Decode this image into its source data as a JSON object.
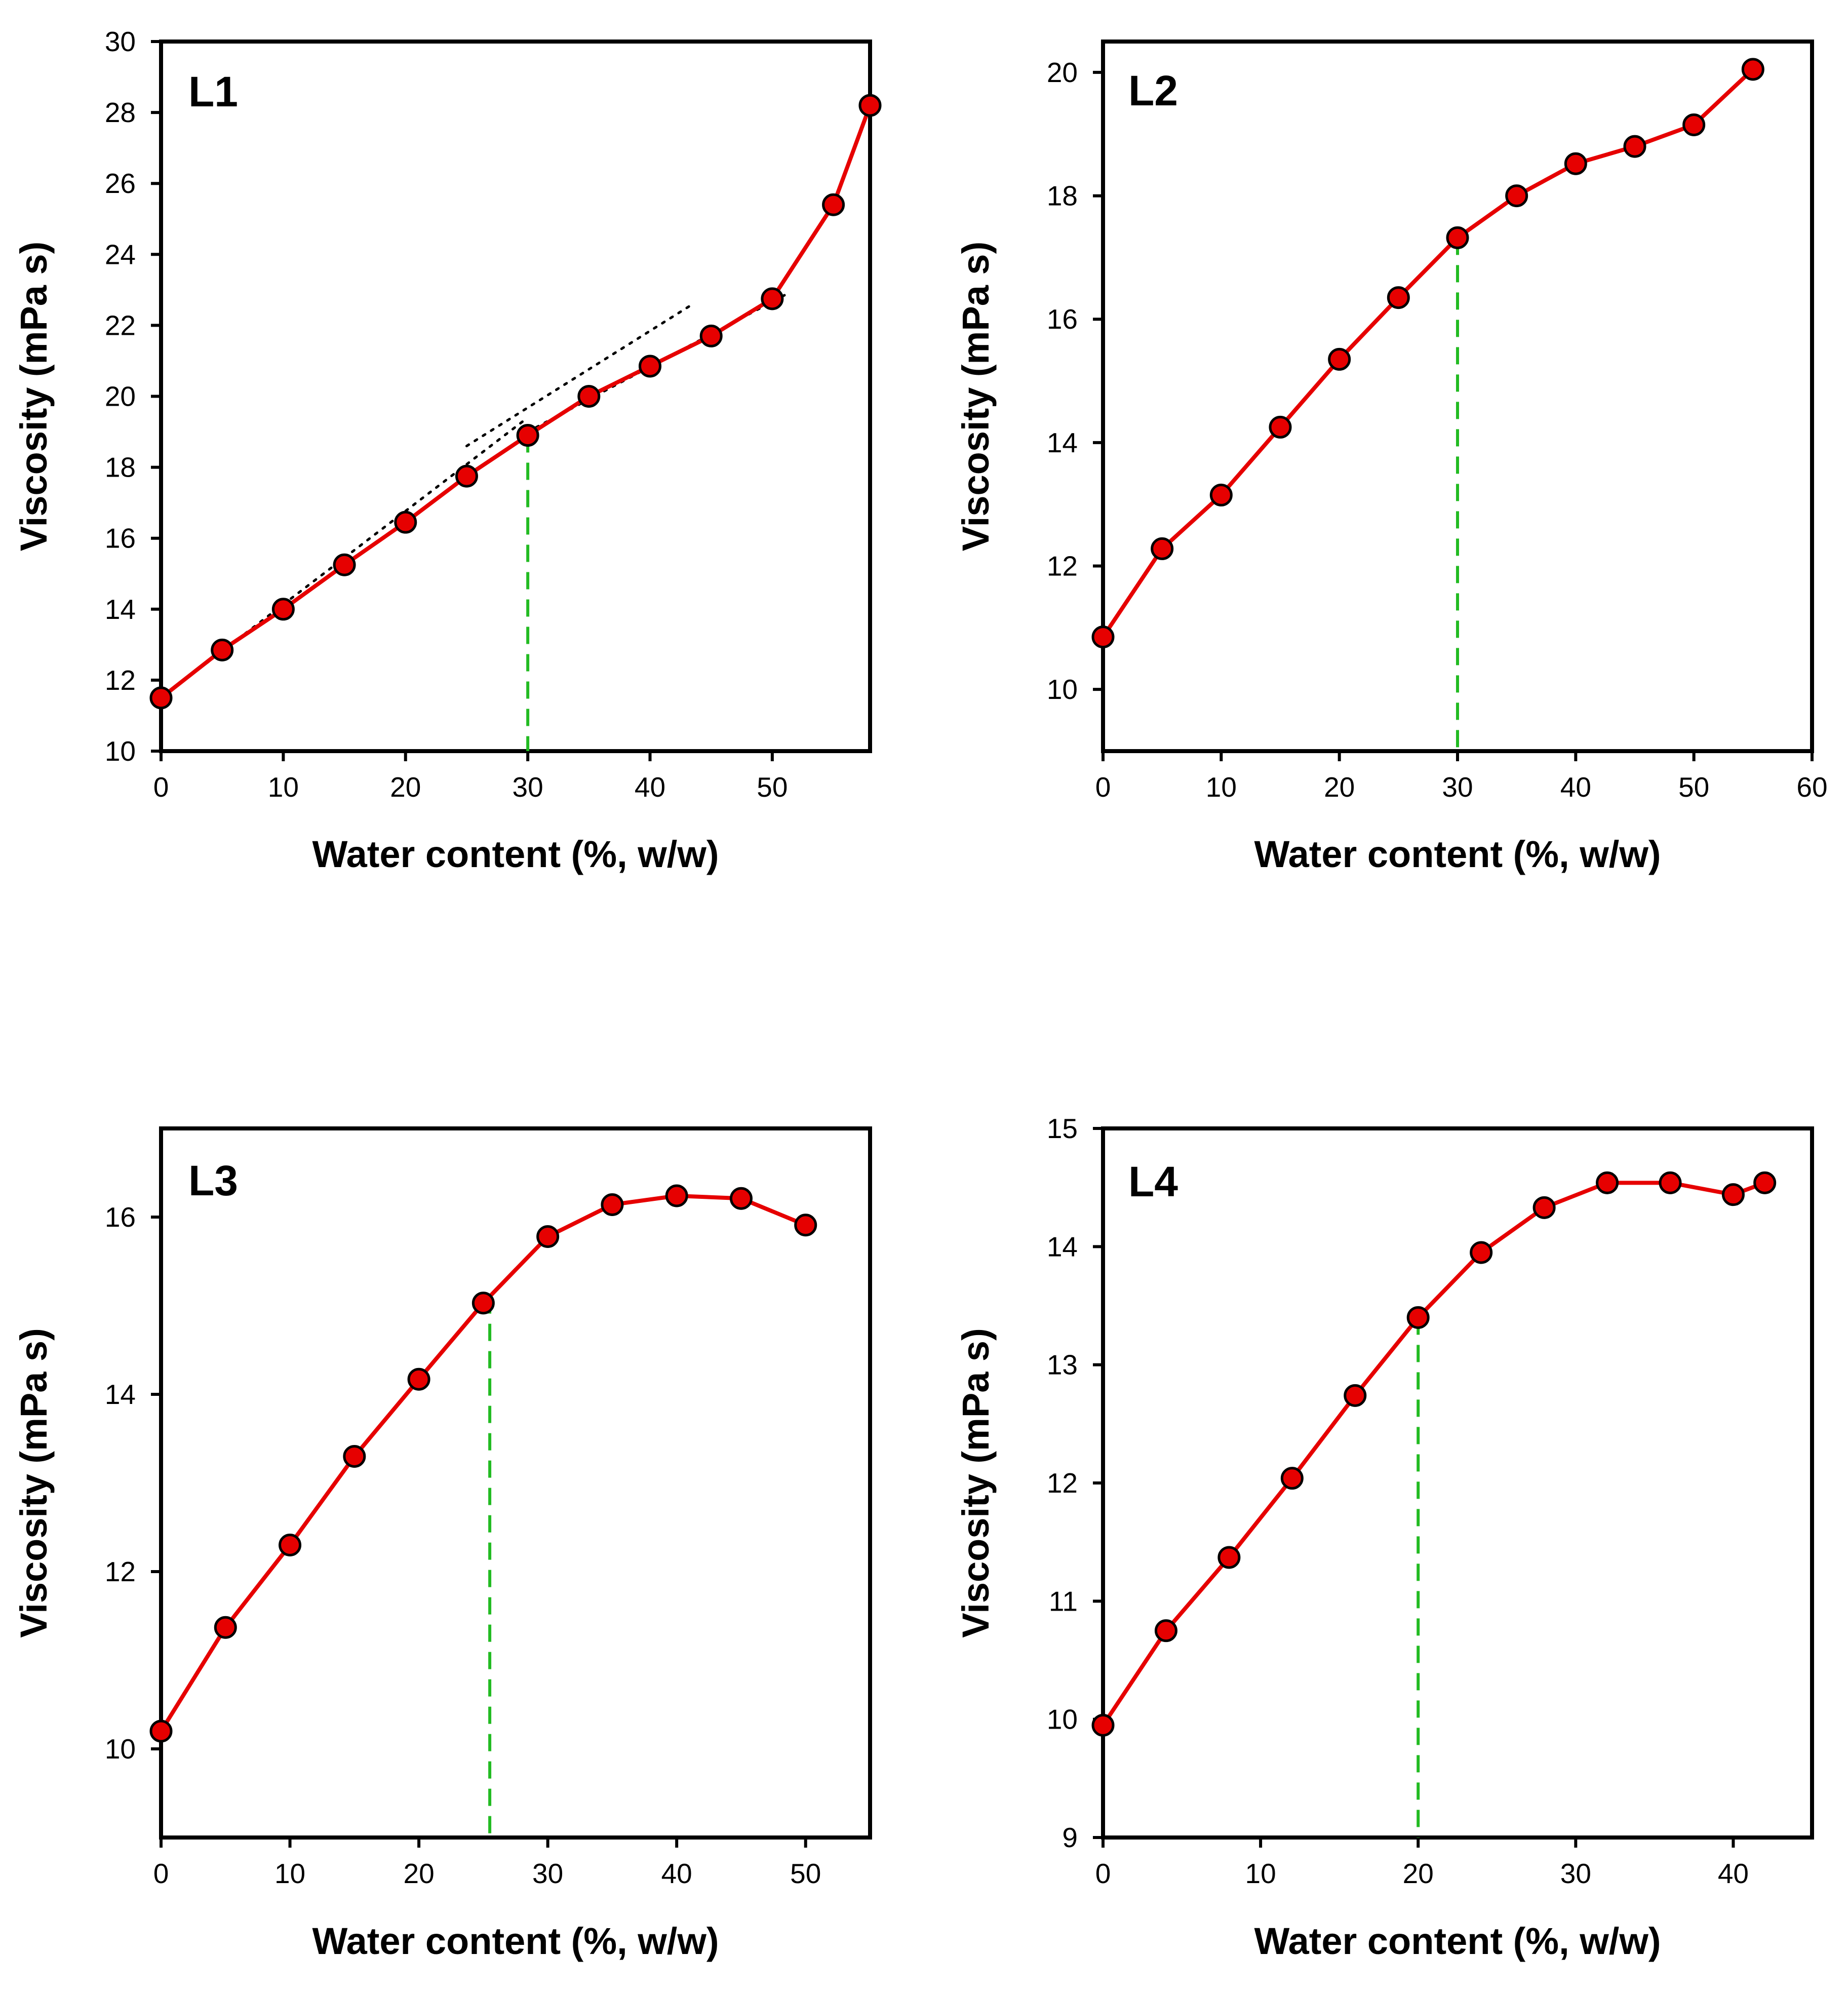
{
  "colors": {
    "marker_fill": "#e60000",
    "line": "#e60000",
    "guide": "#22bb22",
    "axis": "#000000"
  },
  "chart_data": [
    {
      "type": "line",
      "panel": "L1",
      "xlabel": "Water content (%, w/w)",
      "ylabel": "Viscosity (mPa s)",
      "xlim": [
        0,
        58
      ],
      "ylim": [
        10,
        30
      ],
      "xticks": [
        0,
        10,
        20,
        30,
        40,
        50
      ],
      "yticks": [
        10,
        12,
        14,
        16,
        18,
        20,
        22,
        24,
        26,
        28,
        30
      ],
      "x": [
        0,
        5,
        10,
        15,
        20,
        25,
        30,
        35,
        40,
        45,
        50,
        55,
        58
      ],
      "y": [
        11.5,
        12.85,
        14.0,
        15.25,
        16.45,
        17.75,
        18.9,
        20.0,
        20.85,
        21.7,
        22.75,
        25.4,
        28.2
      ],
      "guide_x": 30,
      "trend_lines": [
        {
          "x": [
            0,
            30
          ],
          "y": [
            11.5,
            19.4
          ]
        },
        {
          "x": [
            25,
            43.5
          ],
          "y": [
            18.6,
            22.6
          ]
        },
        {
          "x": [
            30,
            51
          ],
          "y": [
            19.0,
            22.85
          ]
        }
      ]
    },
    {
      "type": "line",
      "panel": "L2",
      "xlabel": "Water content (%, w/w)",
      "ylabel": "Viscosity (mPa s)",
      "xlim": [
        0,
        60
      ],
      "ylim": [
        9,
        20.5
      ],
      "xticks": [
        0,
        10,
        20,
        30,
        40,
        50,
        60
      ],
      "yticks": [
        10,
        12,
        14,
        16,
        18,
        20
      ],
      "x": [
        0,
        5,
        10,
        15,
        20,
        25,
        30,
        35,
        40,
        45,
        50,
        55
      ],
      "y": [
        10.85,
        12.28,
        13.15,
        14.25,
        15.35,
        16.35,
        17.32,
        18.0,
        18.52,
        18.8,
        19.15,
        20.05
      ],
      "guide_x": 30
    },
    {
      "type": "line",
      "panel": "L3",
      "xlabel": "Water content (%, w/w)",
      "ylabel": "Viscosity (mPa s)",
      "xlim": [
        0,
        55
      ],
      "ylim": [
        9,
        17
      ],
      "xticks": [
        0,
        10,
        20,
        30,
        40,
        50
      ],
      "yticks": [
        10,
        12,
        14,
        16
      ],
      "x": [
        0,
        5,
        10,
        15,
        20,
        25,
        30,
        35,
        40,
        45,
        50
      ],
      "y": [
        10.2,
        11.37,
        12.3,
        13.3,
        14.17,
        15.03,
        15.78,
        16.14,
        16.24,
        16.21,
        15.91
      ],
      "guide_x": 25.5
    },
    {
      "type": "line",
      "panel": "L4",
      "xlabel": "Water content (%, w/w)",
      "ylabel": "Viscosity (mPa s)",
      "xlim": [
        0,
        45
      ],
      "ylim": [
        9,
        15
      ],
      "xticks": [
        0,
        10,
        20,
        30,
        40
      ],
      "yticks": [
        9,
        10,
        11,
        12,
        13,
        14,
        15
      ],
      "x": [
        0,
        4,
        8,
        12,
        16,
        20,
        24,
        28,
        32,
        36,
        40,
        42
      ],
      "y": [
        9.95,
        10.75,
        11.37,
        12.04,
        12.74,
        13.4,
        13.95,
        14.33,
        14.54,
        14.54,
        14.44,
        14.54
      ],
      "guide_x": 20
    }
  ]
}
